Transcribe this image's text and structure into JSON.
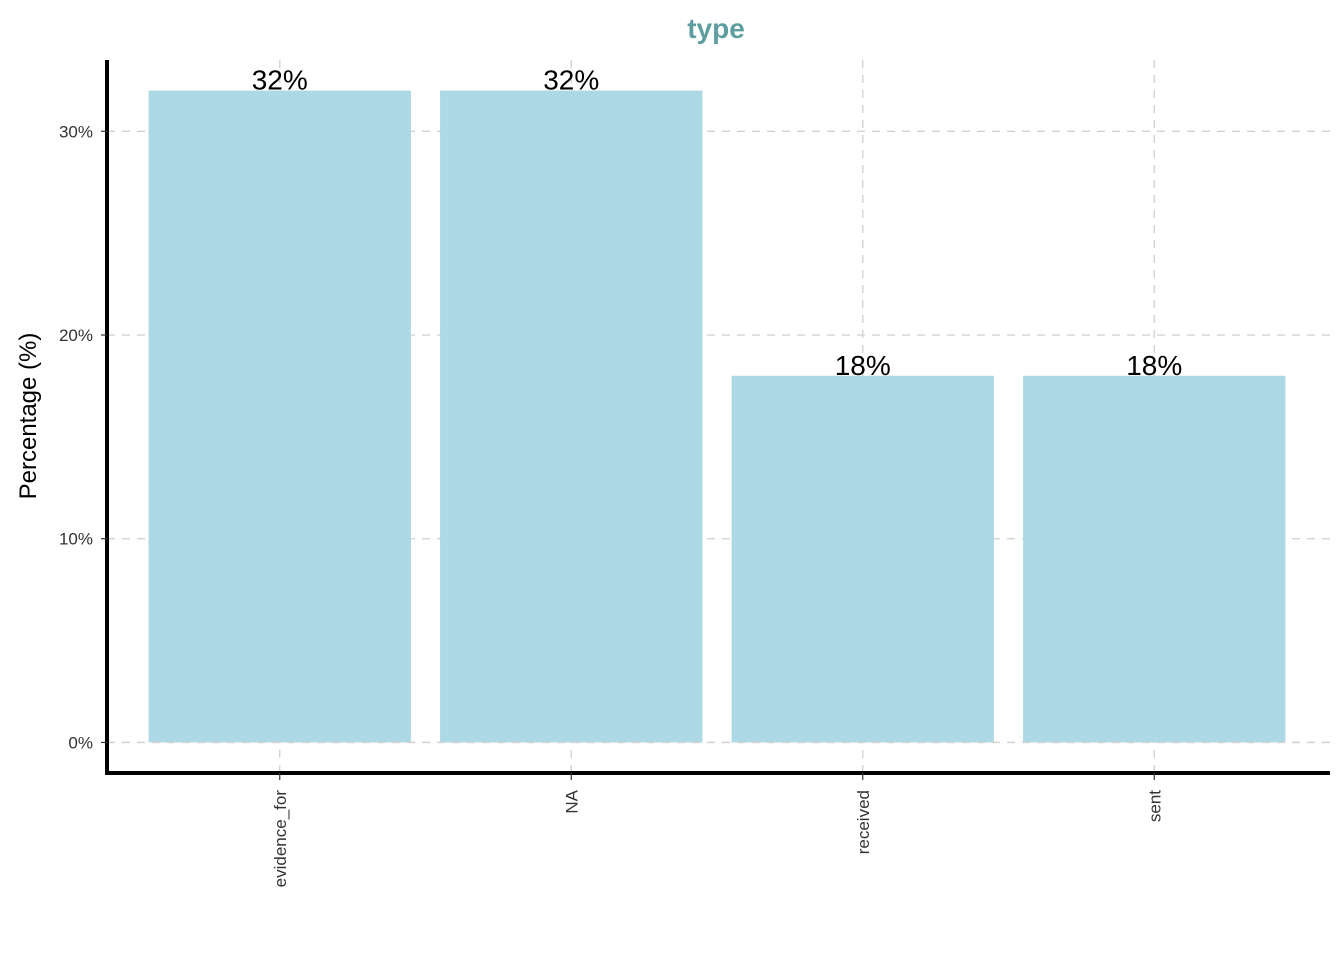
{
  "chart_data": {
    "type": "bar",
    "title": "type",
    "xlabel": "",
    "ylabel": "Percentage (%)",
    "categories": [
      "evidence_for",
      "NA",
      "received",
      "sent"
    ],
    "values": [
      32,
      32,
      18,
      18
    ],
    "data_labels": [
      "32%",
      "32%",
      "18%",
      "18%"
    ],
    "ylim": [
      -1.5,
      33.5
    ],
    "yticks": [
      0,
      10,
      20,
      30
    ],
    "ytick_labels": [
      "0%",
      "10%",
      "20%",
      "30%"
    ],
    "grid": true,
    "legend": "none",
    "colors": {
      "bar": "#add8e6",
      "title": "#5f9ea0",
      "grid": "#d3d3d3",
      "axis": "#000000"
    }
  }
}
